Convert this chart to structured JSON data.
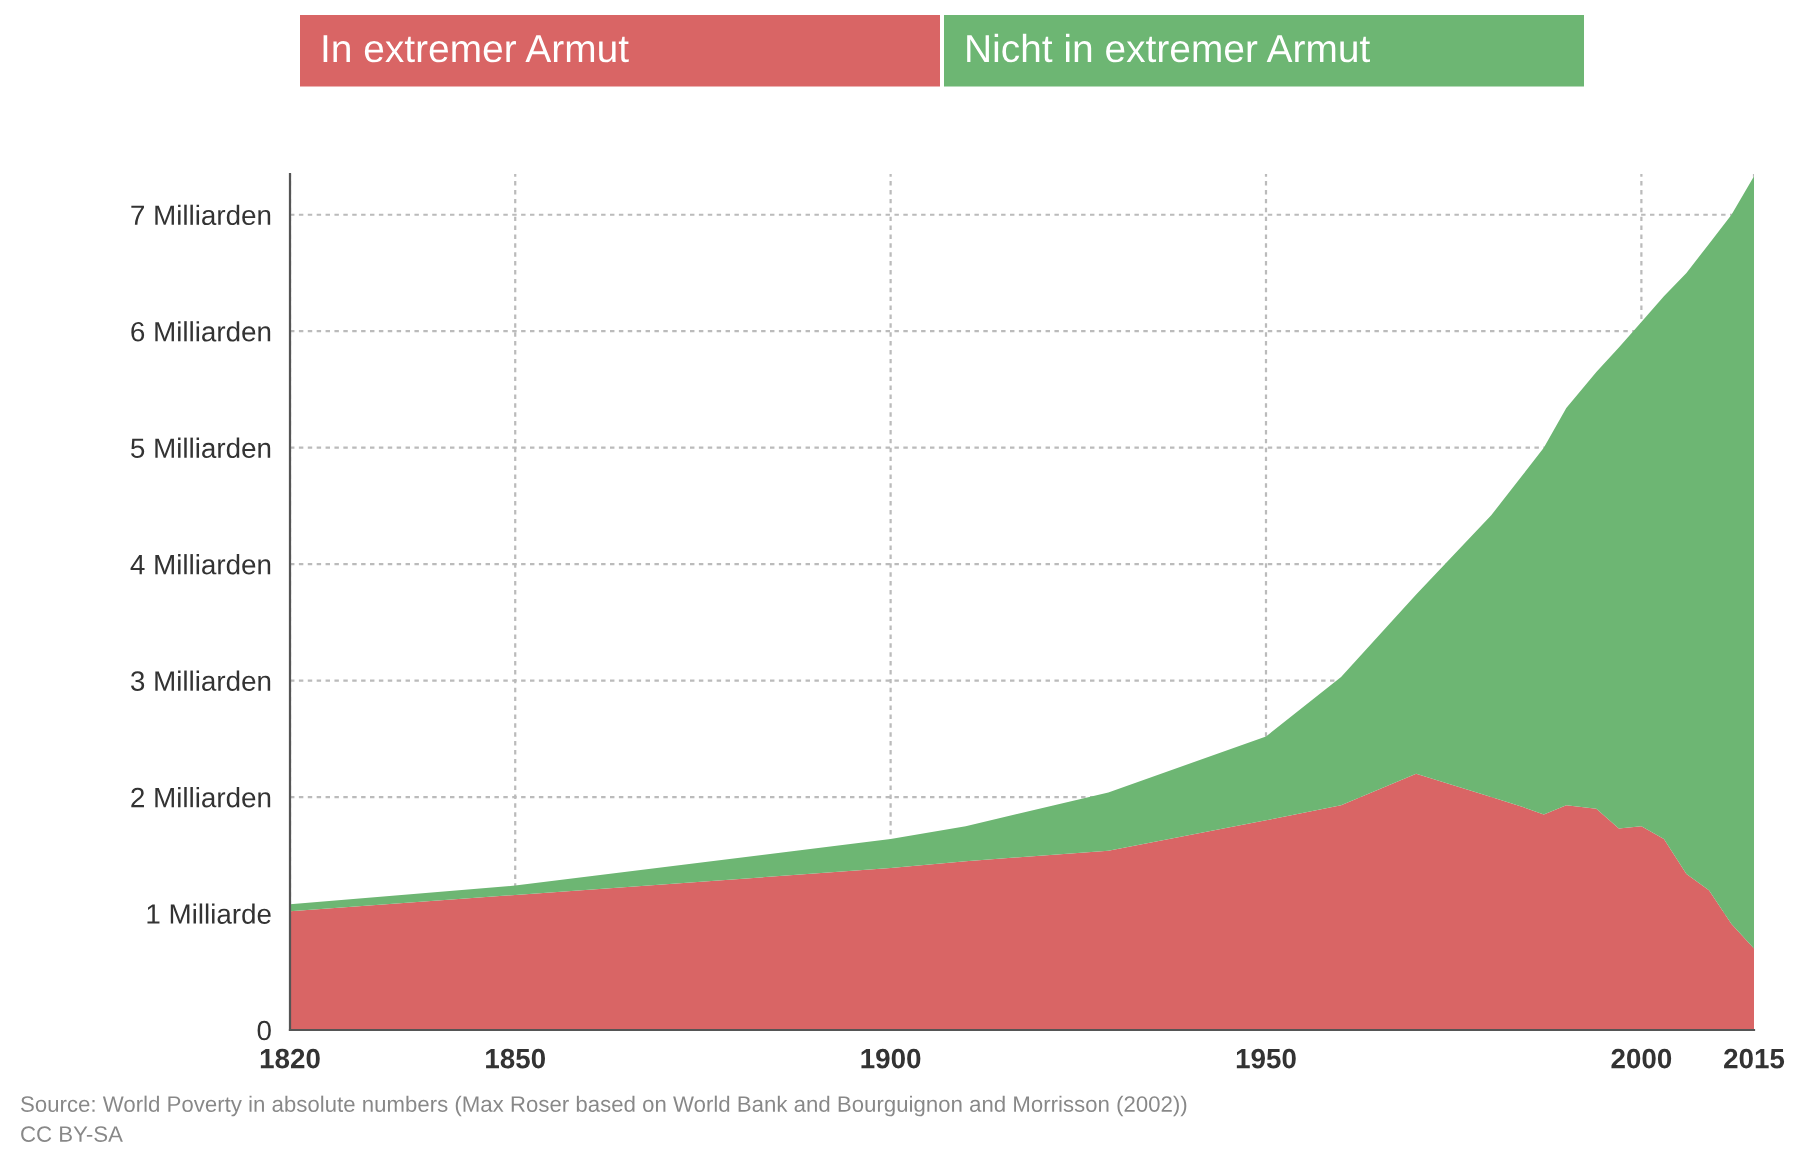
{
  "chart_data": {
    "type": "area",
    "stacked": true,
    "legend": "top",
    "grid": true,
    "x": [
      1820,
      1850,
      1900,
      1910,
      1929,
      1950,
      1960,
      1970,
      1980,
      1984,
      1987,
      1990,
      1994,
      1997,
      2000,
      2003,
      2006,
      2009,
      2012,
      2015
    ],
    "series": [
      {
        "name": "In extremer Armut",
        "color": "#d96565",
        "values": [
          1.02,
          1.16,
          1.39,
          1.45,
          1.54,
          1.8,
          1.93,
          2.2,
          2.0,
          1.92,
          1.85,
          1.93,
          1.9,
          1.73,
          1.75,
          1.64,
          1.34,
          1.2,
          0.91,
          0.7
        ]
      },
      {
        "name": "Nicht in extremer Armut",
        "color": "#6db673",
        "values": [
          0.06,
          0.08,
          0.25,
          0.3,
          0.5,
          0.72,
          1.1,
          1.54,
          2.42,
          2.83,
          3.15,
          3.41,
          3.75,
          4.13,
          4.33,
          4.66,
          5.16,
          5.55,
          6.09,
          6.63
        ]
      }
    ],
    "xlim": [
      1820,
      2015
    ],
    "xticks": [
      1820,
      1850,
      1900,
      1950,
      2000,
      2015
    ],
    "ylim": [
      0,
      7.35
    ],
    "yticks": [
      0,
      {
        "value": 1,
        "label": "1 Milliarde"
      },
      {
        "value": 2,
        "label": "2 Milliarden"
      },
      {
        "value": 3,
        "label": "3 Milliarden"
      },
      {
        "value": 4,
        "label": "4 Milliarden"
      },
      {
        "value": 5,
        "label": "5 Milliarden"
      },
      {
        "value": 6,
        "label": "6 Milliarden"
      },
      {
        "value": 7,
        "label": "7 Milliarden"
      }
    ],
    "annotations": [
      "Source: World Poverty in absolute numbers (Max Roser based on World Bank and Bourguignon and Morrisson (2002))",
      "CC BY-SA"
    ]
  }
}
